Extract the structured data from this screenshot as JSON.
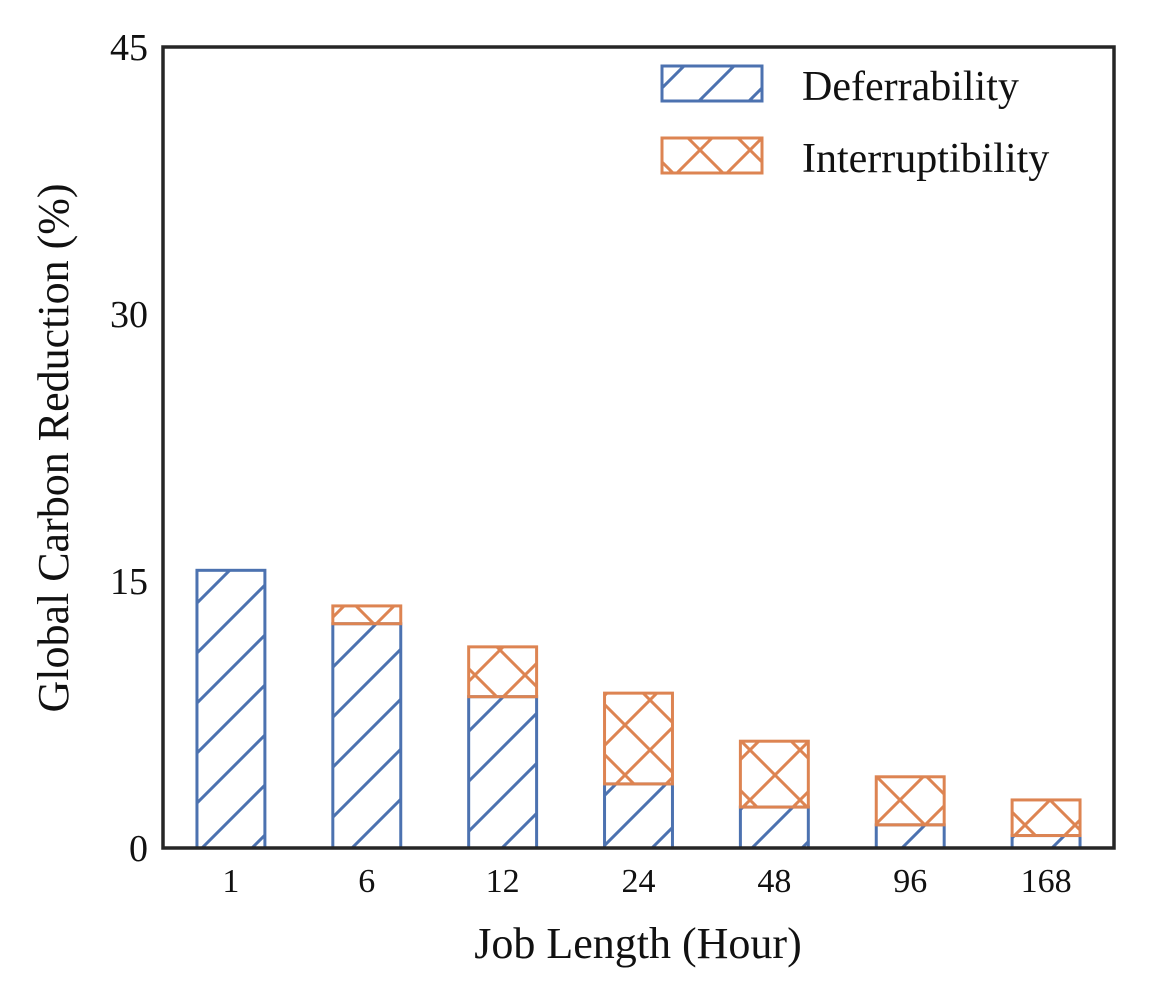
{
  "chart_data": {
    "type": "bar",
    "stacked": true,
    "title": "",
    "xlabel": "Job Length (Hour)",
    "ylabel": "Global Carbon Reduction (%)",
    "categories": [
      "1",
      "6",
      "12",
      "24",
      "48",
      "96",
      "168"
    ],
    "ylim": [
      0,
      45
    ],
    "yticks": [
      "0",
      "15",
      "30",
      "45"
    ],
    "grid": false,
    "legend_position": "top-right",
    "series": [
      {
        "name": "Deferrability",
        "color": "#4c72b0",
        "hatch": "diagonal",
        "values": [
          15.6,
          12.6,
          8.5,
          3.6,
          2.3,
          1.3,
          0.7
        ]
      },
      {
        "name": "Interruptibility",
        "color": "#dd8452",
        "hatch": "crosshatch",
        "values": [
          0.0,
          1.0,
          2.8,
          5.1,
          3.7,
          2.7,
          2.0
        ]
      }
    ]
  }
}
